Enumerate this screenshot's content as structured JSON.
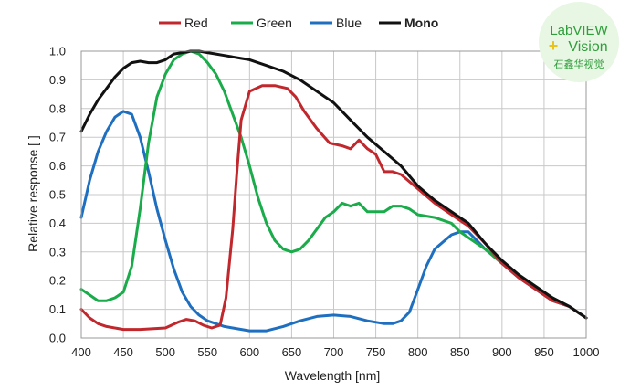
{
  "chart_data": {
    "type": "line",
    "title": "",
    "xlabel": "Wavelength [nm]",
    "ylabel": "Relative response [ ]",
    "xlim": [
      400,
      1000
    ],
    "ylim": [
      0.0,
      1.0
    ],
    "grid": true,
    "legend_position": "top",
    "x_ticks": [
      "400",
      "450",
      "500",
      "550",
      "600",
      "650",
      "700",
      "750",
      "800",
      "850",
      "900",
      "950",
      "1000"
    ],
    "y_ticks": [
      "0.0",
      "0.1",
      "0.2",
      "0.3",
      "0.4",
      "0.5",
      "0.6",
      "0.7",
      "0.8",
      "0.9",
      "1.0"
    ],
    "series": [
      {
        "name": "Red",
        "color": "#c0282d",
        "bold": false,
        "x": [
          400,
          410,
          420,
          430,
          450,
          470,
          500,
          515,
          525,
          535,
          545,
          555,
          565,
          572,
          580,
          585,
          590,
          600,
          615,
          630,
          645,
          655,
          665,
          680,
          695,
          710,
          720,
          730,
          740,
          750,
          760,
          770,
          780,
          800,
          820,
          840,
          860,
          880,
          900,
          920,
          940,
          960,
          980,
          1000
        ],
        "y": [
          0.1,
          0.07,
          0.05,
          0.04,
          0.03,
          0.03,
          0.035,
          0.055,
          0.065,
          0.06,
          0.045,
          0.035,
          0.045,
          0.14,
          0.38,
          0.58,
          0.76,
          0.86,
          0.88,
          0.88,
          0.87,
          0.84,
          0.79,
          0.73,
          0.68,
          0.67,
          0.66,
          0.69,
          0.66,
          0.64,
          0.58,
          0.58,
          0.57,
          0.52,
          0.47,
          0.43,
          0.39,
          0.33,
          0.26,
          0.21,
          0.17,
          0.13,
          0.11,
          0.07
        ]
      },
      {
        "name": "Green",
        "color": "#1aab4a",
        "bold": false,
        "x": [
          400,
          410,
          420,
          430,
          440,
          450,
          460,
          470,
          480,
          490,
          500,
          510,
          520,
          530,
          540,
          550,
          560,
          570,
          580,
          590,
          600,
          610,
          620,
          630,
          640,
          650,
          660,
          670,
          680,
          690,
          700,
          710,
          720,
          730,
          740,
          750,
          760,
          770,
          780,
          790,
          800,
          820,
          840,
          850,
          860,
          880,
          900,
          920,
          940,
          960,
          980,
          1000
        ],
        "y": [
          0.17,
          0.15,
          0.13,
          0.13,
          0.14,
          0.16,
          0.25,
          0.45,
          0.68,
          0.84,
          0.92,
          0.97,
          0.99,
          1.0,
          0.99,
          0.96,
          0.92,
          0.86,
          0.78,
          0.7,
          0.6,
          0.49,
          0.4,
          0.34,
          0.31,
          0.3,
          0.31,
          0.34,
          0.38,
          0.42,
          0.44,
          0.47,
          0.46,
          0.47,
          0.44,
          0.44,
          0.44,
          0.46,
          0.46,
          0.45,
          0.43,
          0.42,
          0.4,
          0.37,
          0.35,
          0.31,
          0.26,
          0.22,
          0.18,
          0.14,
          0.11,
          0.07
        ]
      },
      {
        "name": "Blue",
        "color": "#1f6fc0",
        "bold": false,
        "x": [
          400,
          410,
          420,
          430,
          440,
          450,
          460,
          470,
          480,
          490,
          500,
          510,
          520,
          530,
          540,
          550,
          560,
          570,
          580,
          600,
          620,
          640,
          660,
          680,
          700,
          720,
          740,
          760,
          770,
          780,
          790,
          800,
          810,
          820,
          840,
          850,
          860,
          880,
          900,
          920,
          940,
          960,
          980,
          1000
        ],
        "y": [
          0.42,
          0.55,
          0.65,
          0.72,
          0.77,
          0.79,
          0.78,
          0.7,
          0.58,
          0.45,
          0.34,
          0.24,
          0.16,
          0.11,
          0.08,
          0.06,
          0.05,
          0.04,
          0.035,
          0.025,
          0.025,
          0.04,
          0.06,
          0.075,
          0.08,
          0.075,
          0.06,
          0.05,
          0.05,
          0.06,
          0.09,
          0.17,
          0.25,
          0.31,
          0.36,
          0.37,
          0.37,
          0.31,
          0.26,
          0.21,
          0.17,
          0.13,
          0.11,
          0.07
        ]
      },
      {
        "name": "Mono",
        "color": "#111111",
        "bold": true,
        "x": [
          400,
          410,
          420,
          430,
          440,
          450,
          460,
          470,
          480,
          490,
          500,
          510,
          520,
          530,
          540,
          550,
          560,
          570,
          580,
          590,
          600,
          620,
          640,
          660,
          680,
          700,
          710,
          720,
          740,
          760,
          780,
          800,
          820,
          840,
          860,
          880,
          900,
          920,
          940,
          960,
          980,
          1000
        ],
        "y": [
          0.72,
          0.78,
          0.83,
          0.87,
          0.91,
          0.94,
          0.96,
          0.965,
          0.96,
          0.96,
          0.97,
          0.99,
          0.995,
          1.0,
          1.0,
          0.995,
          0.99,
          0.985,
          0.98,
          0.975,
          0.97,
          0.95,
          0.93,
          0.9,
          0.86,
          0.82,
          0.79,
          0.76,
          0.7,
          0.65,
          0.6,
          0.53,
          0.48,
          0.44,
          0.4,
          0.33,
          0.27,
          0.22,
          0.18,
          0.14,
          0.11,
          0.07
        ]
      }
    ]
  },
  "badge": {
    "line1": "LabVIEW",
    "plus": "+",
    "line2": "Vision",
    "line3": "石鑫华视觉",
    "bg_color": "#e8f6e4",
    "text_color": "#2f9e3b",
    "plus_color": "#e9c21b"
  }
}
